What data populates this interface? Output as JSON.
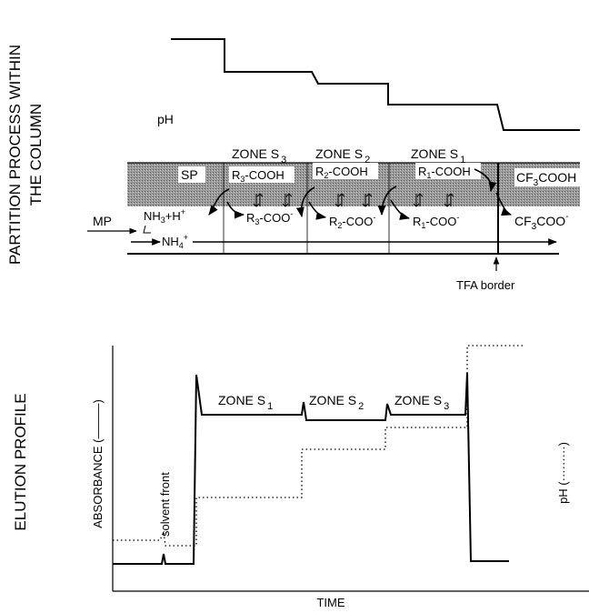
{
  "top_panel": {
    "side_label_line1": "PARTITION PROCESS WITHIN",
    "side_label_line2": "THE COLUMN",
    "ph_label": "pH",
    "zones": [
      {
        "name": "ZONE S",
        "sub": "3"
      },
      {
        "name": "ZONE S",
        "sub": "2"
      },
      {
        "name": "ZONE S",
        "sub": "1"
      }
    ],
    "sp_label": "SP",
    "acids": [
      {
        "pre": "R",
        "sub": "3",
        "post": "-COOH"
      },
      {
        "pre": "R",
        "sub": "2",
        "post": "-COOH"
      },
      {
        "pre": "R",
        "sub": "1",
        "post": "-COOH"
      }
    ],
    "tfa_acid": {
      "pre": "CF",
      "sub": "3",
      "post": "COOH"
    },
    "anions": [
      {
        "pre": "R",
        "sub": "3",
        "post": "-COO",
        "sup": "-"
      },
      {
        "pre": "R",
        "sub": "2",
        "post": "-COO",
        "sup": "-"
      },
      {
        "pre": "R",
        "sub": "1",
        "post": "-COO",
        "sup": "-"
      }
    ],
    "tfa_anion": {
      "pre": "CF",
      "sub": "3",
      "post": "COO",
      "sup": "-"
    },
    "mp_label": "MP",
    "nh3": {
      "pre": "NH",
      "sub": "3",
      "post": "+H",
      "sup": "+"
    },
    "nh4": {
      "pre": "NH",
      "sub": "4",
      "sup": "+"
    },
    "tfa_border_label": "TFA border"
  },
  "bottom_panel": {
    "side_label": "ELUTION PROFILE",
    "ylabel_left": "ABSORBANCE (———)",
    "ylabel_right": "pH (·········)",
    "xlabel": "TIME",
    "solvent_front_label": "solvent front",
    "zones": [
      {
        "name": "ZONE S",
        "sub": "1"
      },
      {
        "name": "ZONE S",
        "sub": "2"
      },
      {
        "name": "ZONE S",
        "sub": "3"
      }
    ]
  },
  "colors": {
    "ink": "#000000",
    "stationary_phase": "#8c8c8c"
  }
}
